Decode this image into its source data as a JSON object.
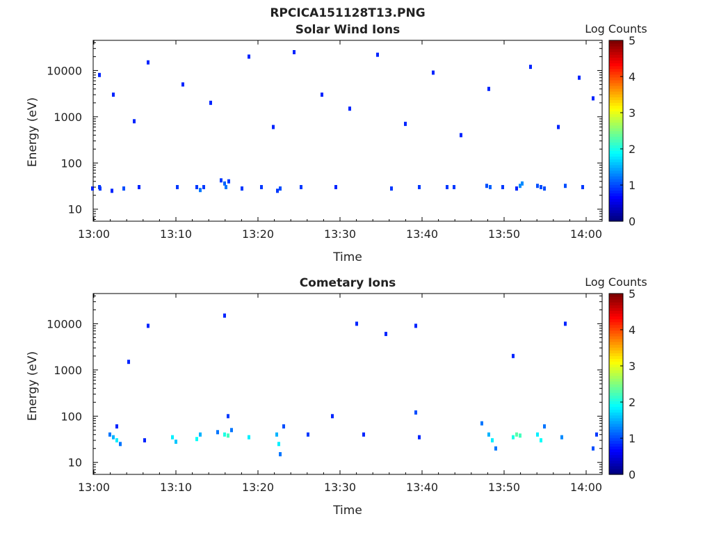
{
  "figure": {
    "title": "RPCICA151128T13.PNG"
  },
  "chart_data": [
    {
      "type": "heatmap",
      "title": "Solar Wind Ions",
      "xlabel": "Time",
      "ylabel": "Energy (eV)",
      "y_scale": "log",
      "x_ticks": [
        "13:00",
        "13:10",
        "13:20",
        "13:30",
        "13:40",
        "13:50",
        "14:00"
      ],
      "y_ticks": [
        "10",
        "100",
        "1000",
        "10000"
      ],
      "colorbar": {
        "label": "Log Counts",
        "ticks": [
          "0",
          "1",
          "2",
          "3",
          "4",
          "5"
        ],
        "colormap": "jet"
      },
      "cells": [
        [
          130,
          28,
          0.8
        ],
        [
          140,
          30,
          0.9
        ],
        [
          141,
          28,
          0.9
        ],
        [
          158,
          25,
          0.8
        ],
        [
          175,
          28,
          1
        ],
        [
          197,
          30,
          0.8
        ],
        [
          252,
          30,
          0.9
        ],
        [
          280,
          30,
          0.9
        ],
        [
          285,
          26,
          1.2
        ],
        [
          290,
          30,
          0.9
        ],
        [
          315,
          42,
          0.9
        ],
        [
          320,
          36,
          1.1
        ],
        [
          322,
          30,
          1.2
        ],
        [
          326,
          40,
          0.9
        ],
        [
          345,
          28,
          0.9
        ],
        [
          373,
          30,
          0.9
        ],
        [
          396,
          25,
          0.9
        ],
        [
          400,
          28,
          1
        ],
        [
          430,
          30,
          0.9
        ],
        [
          480,
          30,
          0.8
        ],
        [
          560,
          28,
          0.9
        ],
        [
          600,
          30,
          0.9
        ],
        [
          640,
          30,
          0.9
        ],
        [
          650,
          30,
          0.9
        ],
        [
          697,
          32,
          1
        ],
        [
          702,
          30,
          1.1
        ],
        [
          720,
          30,
          0.9
        ],
        [
          740,
          28,
          0.8
        ],
        [
          745,
          32,
          1.3
        ],
        [
          748,
          36,
          1.3
        ],
        [
          770,
          32,
          1
        ],
        [
          775,
          30,
          1
        ],
        [
          780,
          28,
          1
        ],
        [
          810,
          32,
          1
        ],
        [
          835,
          30,
          0.9
        ],
        [
          140,
          8000,
          0.8
        ],
        [
          160,
          3000,
          0.8
        ],
        [
          190,
          800,
          0.8
        ],
        [
          210,
          15000,
          0.8
        ],
        [
          260,
          5000,
          0.8
        ],
        [
          300,
          2000,
          0.8
        ],
        [
          355,
          20000,
          0.8
        ],
        [
          390,
          600,
          0.8
        ],
        [
          420,
          25000,
          0.8
        ],
        [
          460,
          3000,
          0.8
        ],
        [
          500,
          1500,
          0.8
        ],
        [
          540,
          22000,
          0.8
        ],
        [
          580,
          700,
          0.8
        ],
        [
          620,
          9000,
          0.8
        ],
        [
          660,
          400,
          0.8
        ],
        [
          700,
          4000,
          0.8
        ],
        [
          760,
          12000,
          0.8
        ],
        [
          800,
          600,
          0.8
        ],
        [
          830,
          7000,
          0.8
        ],
        [
          850,
          2500,
          0.8
        ]
      ]
    },
    {
      "type": "heatmap",
      "title": "Cometary Ions",
      "xlabel": "Time",
      "ylabel": "Energy (eV)",
      "y_scale": "log",
      "x_ticks": [
        "13:00",
        "13:10",
        "13:20",
        "13:30",
        "13:40",
        "13:50",
        "14:00"
      ],
      "y_ticks": [
        "10",
        "100",
        "1000",
        "10000"
      ],
      "colorbar": {
        "label": "Log Counts",
        "ticks": [
          "0",
          "1",
          "2",
          "3",
          "4",
          "5"
        ],
        "colormap": "jet"
      },
      "cells": [
        [
          155,
          40,
          1.2
        ],
        [
          160,
          35,
          1.5
        ],
        [
          165,
          30,
          1.8
        ],
        [
          170,
          25,
          1.2
        ],
        [
          165,
          60,
          0.8
        ],
        [
          205,
          30,
          0.8
        ],
        [
          245,
          35,
          1.8
        ],
        [
          250,
          28,
          1.6
        ],
        [
          280,
          32,
          1.9
        ],
        [
          285,
          40,
          1.5
        ],
        [
          310,
          45,
          1.2
        ],
        [
          320,
          40,
          2.0
        ],
        [
          325,
          38,
          2.2
        ],
        [
          330,
          50,
          1.2
        ],
        [
          325,
          100,
          0.9
        ],
        [
          355,
          35,
          1.8
        ],
        [
          395,
          40,
          1.5
        ],
        [
          398,
          25,
          1.8
        ],
        [
          400,
          15,
          1.2
        ],
        [
          405,
          60,
          1.0
        ],
        [
          440,
          40,
          0.9
        ],
        [
          475,
          100,
          0.8
        ],
        [
          520,
          40,
          0.8
        ],
        [
          595,
          120,
          1.0
        ],
        [
          600,
          35,
          0.8
        ],
        [
          690,
          70,
          1.2
        ],
        [
          700,
          40,
          1.5
        ],
        [
          705,
          30,
          1.8
        ],
        [
          710,
          20,
          1.2
        ],
        [
          735,
          35,
          2.0
        ],
        [
          740,
          40,
          2.3
        ],
        [
          745,
          38,
          2.2
        ],
        [
          770,
          40,
          1.8
        ],
        [
          775,
          30,
          1.9
        ],
        [
          780,
          60,
          1.2
        ],
        [
          805,
          35,
          1.3
        ],
        [
          850,
          20,
          1.0
        ],
        [
          855,
          40,
          0.9
        ],
        [
          210,
          9000,
          0.8
        ],
        [
          320,
          15000,
          0.8
        ],
        [
          510,
          10000,
          0.8
        ],
        [
          595,
          9000,
          0.8
        ],
        [
          810,
          10000,
          0.8
        ],
        [
          182,
          1500,
          0.8
        ],
        [
          735,
          2000,
          0.8
        ],
        [
          552,
          6000,
          0.8
        ]
      ]
    }
  ]
}
